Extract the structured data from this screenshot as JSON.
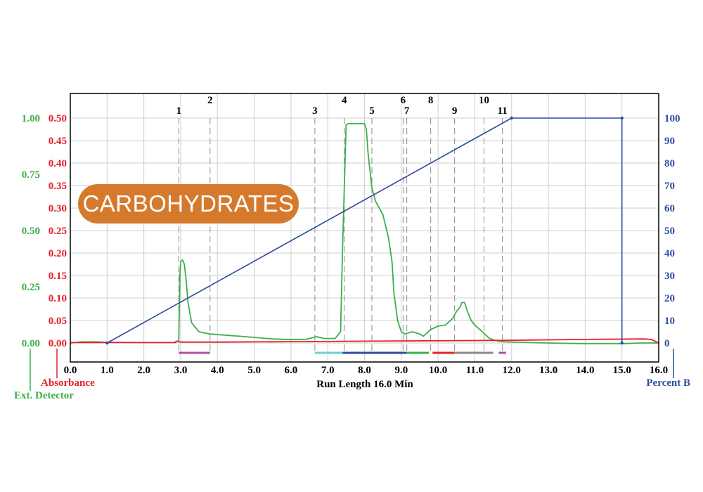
{
  "chart_data": {
    "type": "line",
    "title": "",
    "badge": "CARBOHYDRATES",
    "xlabel": "Run Length 16.0 Min",
    "xlim": [
      0,
      16
    ],
    "x_ticks": [
      "0.0",
      "1.0",
      "2.0",
      "3.0",
      "4.0",
      "5.0",
      "6.0",
      "7.0",
      "8.0",
      "9.0",
      "10.0",
      "11.0",
      "12.0",
      "13.0",
      "14.0",
      "15.0",
      "16.0"
    ],
    "axes": {
      "absorbance": {
        "label": "Absorbance",
        "range": [
          0,
          0.5
        ],
        "color": "#e5202a",
        "ticks": [
          "0.00",
          "0.05",
          "0.10",
          "0.15",
          "0.20",
          "0.25",
          "0.30",
          "0.35",
          "0.40",
          "0.45",
          "0.50"
        ]
      },
      "ext_detector": {
        "label": "Ext. Detector",
        "range": [
          0,
          1.0
        ],
        "color": "#3daf48",
        "ticks": [
          "0.00",
          "0.25",
          "0.50",
          "0.75",
          "1.00"
        ]
      },
      "percent_b": {
        "label": "Percent B",
        "range": [
          0,
          100
        ],
        "color": "#2e4d9c",
        "ticks": [
          "0",
          "10",
          "20",
          "30",
          "40",
          "50",
          "60",
          "70",
          "80",
          "90",
          "100"
        ]
      }
    },
    "grid": true,
    "series": [
      {
        "axis": "ext_detector",
        "color": "#3daf48",
        "points": [
          [
            0,
            0
          ],
          [
            0.3,
            0.005
          ],
          [
            0.7,
            0.005
          ],
          [
            1.0,
            0.003
          ],
          [
            2.0,
            0.002
          ],
          [
            2.8,
            0.002
          ],
          [
            2.95,
            0.01
          ],
          [
            2.98,
            0.3
          ],
          [
            3.0,
            0.36
          ],
          [
            3.05,
            0.37
          ],
          [
            3.1,
            0.35
          ],
          [
            3.15,
            0.28
          ],
          [
            3.2,
            0.18
          ],
          [
            3.3,
            0.09
          ],
          [
            3.5,
            0.05
          ],
          [
            3.8,
            0.04
          ],
          [
            4.2,
            0.035
          ],
          [
            4.6,
            0.03
          ],
          [
            5.0,
            0.025
          ],
          [
            5.5,
            0.018
          ],
          [
            6.0,
            0.015
          ],
          [
            6.4,
            0.016
          ],
          [
            6.7,
            0.028
          ],
          [
            6.9,
            0.02
          ],
          [
            7.2,
            0.02
          ],
          [
            7.35,
            0.05
          ],
          [
            7.4,
            0.4
          ],
          [
            7.5,
            0.97
          ],
          [
            7.55,
            0.975
          ],
          [
            8.0,
            0.975
          ],
          [
            8.05,
            0.95
          ],
          [
            8.1,
            0.84
          ],
          [
            8.2,
            0.69
          ],
          [
            8.3,
            0.63
          ],
          [
            8.5,
            0.57
          ],
          [
            8.65,
            0.47
          ],
          [
            8.75,
            0.36
          ],
          [
            8.8,
            0.22
          ],
          [
            8.9,
            0.1
          ],
          [
            9.0,
            0.05
          ],
          [
            9.1,
            0.04
          ],
          [
            9.3,
            0.05
          ],
          [
            9.5,
            0.04
          ],
          [
            9.6,
            0.03
          ],
          [
            9.8,
            0.06
          ],
          [
            10.0,
            0.075
          ],
          [
            10.2,
            0.08
          ],
          [
            10.4,
            0.11
          ],
          [
            10.5,
            0.14
          ],
          [
            10.6,
            0.16
          ],
          [
            10.65,
            0.18
          ],
          [
            10.72,
            0.18
          ],
          [
            10.8,
            0.14
          ],
          [
            10.9,
            0.1
          ],
          [
            11.0,
            0.08
          ],
          [
            11.2,
            0.05
          ],
          [
            11.4,
            0.02
          ],
          [
            11.6,
            0.01
          ],
          [
            11.8,
            0.005
          ],
          [
            12.2,
            0.003
          ],
          [
            13.0,
            0.0
          ],
          [
            14.0,
            -0.003
          ],
          [
            15.0,
            -0.003
          ],
          [
            15.5,
            0.0
          ],
          [
            16.0,
            0.0
          ]
        ]
      },
      {
        "axis": "absorbance",
        "color": "#e5202a",
        "points": [
          [
            0,
            0.001
          ],
          [
            2.85,
            0.001
          ],
          [
            2.9,
            0.004
          ],
          [
            3.0,
            0.002
          ],
          [
            4.0,
            0.002
          ],
          [
            6.0,
            0.003
          ],
          [
            8.0,
            0.004
          ],
          [
            10.0,
            0.005
          ],
          [
            12.0,
            0.006
          ],
          [
            14.0,
            0.008
          ],
          [
            15.6,
            0.009
          ],
          [
            15.8,
            0.008
          ],
          [
            16.0,
            0.0
          ]
        ]
      },
      {
        "axis": "percent_b",
        "color": "#2e4d9c",
        "points": [
          [
            1.0,
            0
          ],
          [
            12.0,
            100
          ],
          [
            15.0,
            100
          ],
          [
            15.0,
            0
          ]
        ]
      }
    ],
    "fraction_markers": [
      {
        "label": "1",
        "x": 2.95
      },
      {
        "label": "2",
        "x": 3.8
      },
      {
        "label": "3",
        "x": 6.65
      },
      {
        "label": "4",
        "x": 7.45
      },
      {
        "label": "5",
        "x": 8.2
      },
      {
        "label": "6",
        "x": 9.05
      },
      {
        "label": "7",
        "x": 9.15
      },
      {
        "label": "8",
        "x": 9.8
      },
      {
        "label": "9",
        "x": 10.45
      },
      {
        "label": "10",
        "x": 11.25
      },
      {
        "label": "11",
        "x": 11.75
      }
    ],
    "fraction_bars": [
      {
        "x0": 2.95,
        "x1": 3.8,
        "color": "#b04fa0"
      },
      {
        "x0": 6.65,
        "x1": 7.4,
        "color": "#6fd0d0"
      },
      {
        "x0": 7.4,
        "x1": 9.15,
        "color": "#2e4d9c"
      },
      {
        "x0": 9.15,
        "x1": 9.75,
        "color": "#3daf48"
      },
      {
        "x0": 9.85,
        "x1": 10.45,
        "color": "#e5202a"
      },
      {
        "x0": 10.45,
        "x1": 11.5,
        "color": "#8a8a8a"
      },
      {
        "x0": 11.65,
        "x1": 11.85,
        "color": "#b04fa0"
      }
    ]
  }
}
